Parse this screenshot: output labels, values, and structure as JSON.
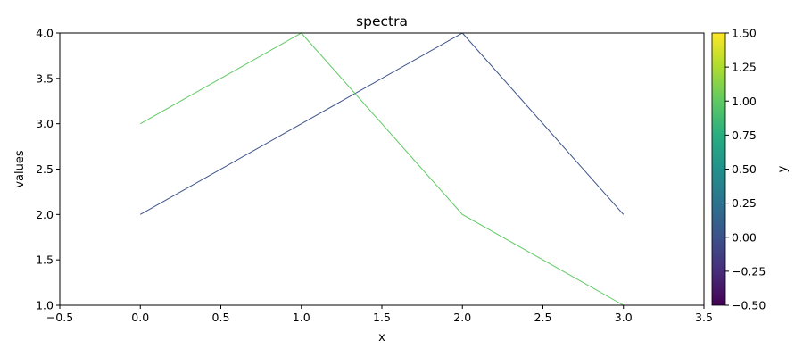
{
  "chart_data": {
    "type": "line",
    "title": "spectra",
    "xlabel": "x",
    "ylabel": "values",
    "xlim": [
      -0.5,
      3.5
    ],
    "ylim": [
      1.0,
      4.0
    ],
    "x_ticks": [
      "−0.5",
      "0.0",
      "0.5",
      "1.0",
      "1.5",
      "2.0",
      "2.5",
      "3.0",
      "3.5"
    ],
    "y_ticks": [
      "1.0",
      "1.5",
      "2.0",
      "2.5",
      "3.0",
      "3.5",
      "4.0"
    ],
    "grid": false,
    "legend": "none",
    "series": [
      {
        "y_value": 0,
        "color": "#3b528b",
        "x": [
          0,
          1,
          2,
          3
        ],
        "values": [
          2,
          3,
          4,
          2
        ]
      },
      {
        "y_value": 1,
        "color": "#5ec962",
        "x": [
          0,
          1,
          2,
          3
        ],
        "values": [
          3,
          4,
          2,
          1
        ]
      }
    ],
    "colorbar": {
      "label": "y",
      "colormap": "viridis",
      "range": [
        -0.5,
        1.5
      ],
      "ticks": [
        "−0.50",
        "−0.25",
        "0.00",
        "0.25",
        "0.50",
        "0.75",
        "1.00",
        "1.25",
        "1.50"
      ]
    }
  }
}
